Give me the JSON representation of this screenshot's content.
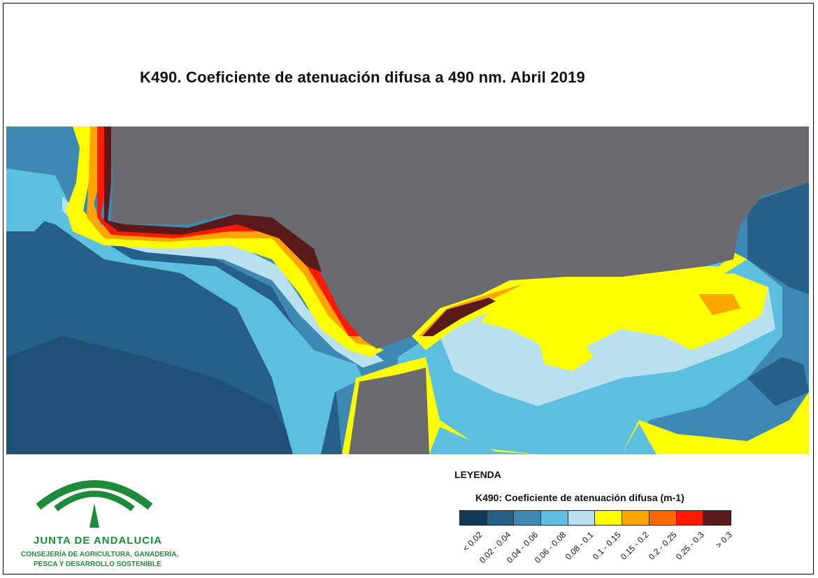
{
  "title": "K490. Coeficiente de atenuación difusa a 490 nm. Abril 2019",
  "legend": {
    "heading": "LEYENDA",
    "subtitle": "K490: Coeficiente de atenuación difusa (m-1)",
    "classes": [
      {
        "label": "< 0.02",
        "color": "#0f3a5c"
      },
      {
        "label": "0.02 - 0.04",
        "color": "#265f87"
      },
      {
        "label": "0.04 - 0.06",
        "color": "#3d89b3"
      },
      {
        "label": "0.06 - 0.08",
        "color": "#5cbfe0"
      },
      {
        "label": "0.08 - 0.1",
        "color": "#b8e0ee"
      },
      {
        "label": "0.1 - 0.15",
        "color": "#ffff00"
      },
      {
        "label": "0.15 - 0.2",
        "color": "#ffa500"
      },
      {
        "label": "0.2 - 0.25",
        "color": "#ff6a00"
      },
      {
        "label": "0.25 - 0.3",
        "color": "#ff1a00"
      },
      {
        "label": "> 0.3",
        "color": "#5a1a1a"
      }
    ]
  },
  "map": {
    "land_color": "#6b6b6f"
  },
  "logo": {
    "name": "JUNTA DE ANDALUCIA",
    "line1": "CONSEJERÍA DE AGRICULTURA, GANADERÍA,",
    "line2": "PESCA Y DESARROLLO SOSTENIBLE"
  }
}
